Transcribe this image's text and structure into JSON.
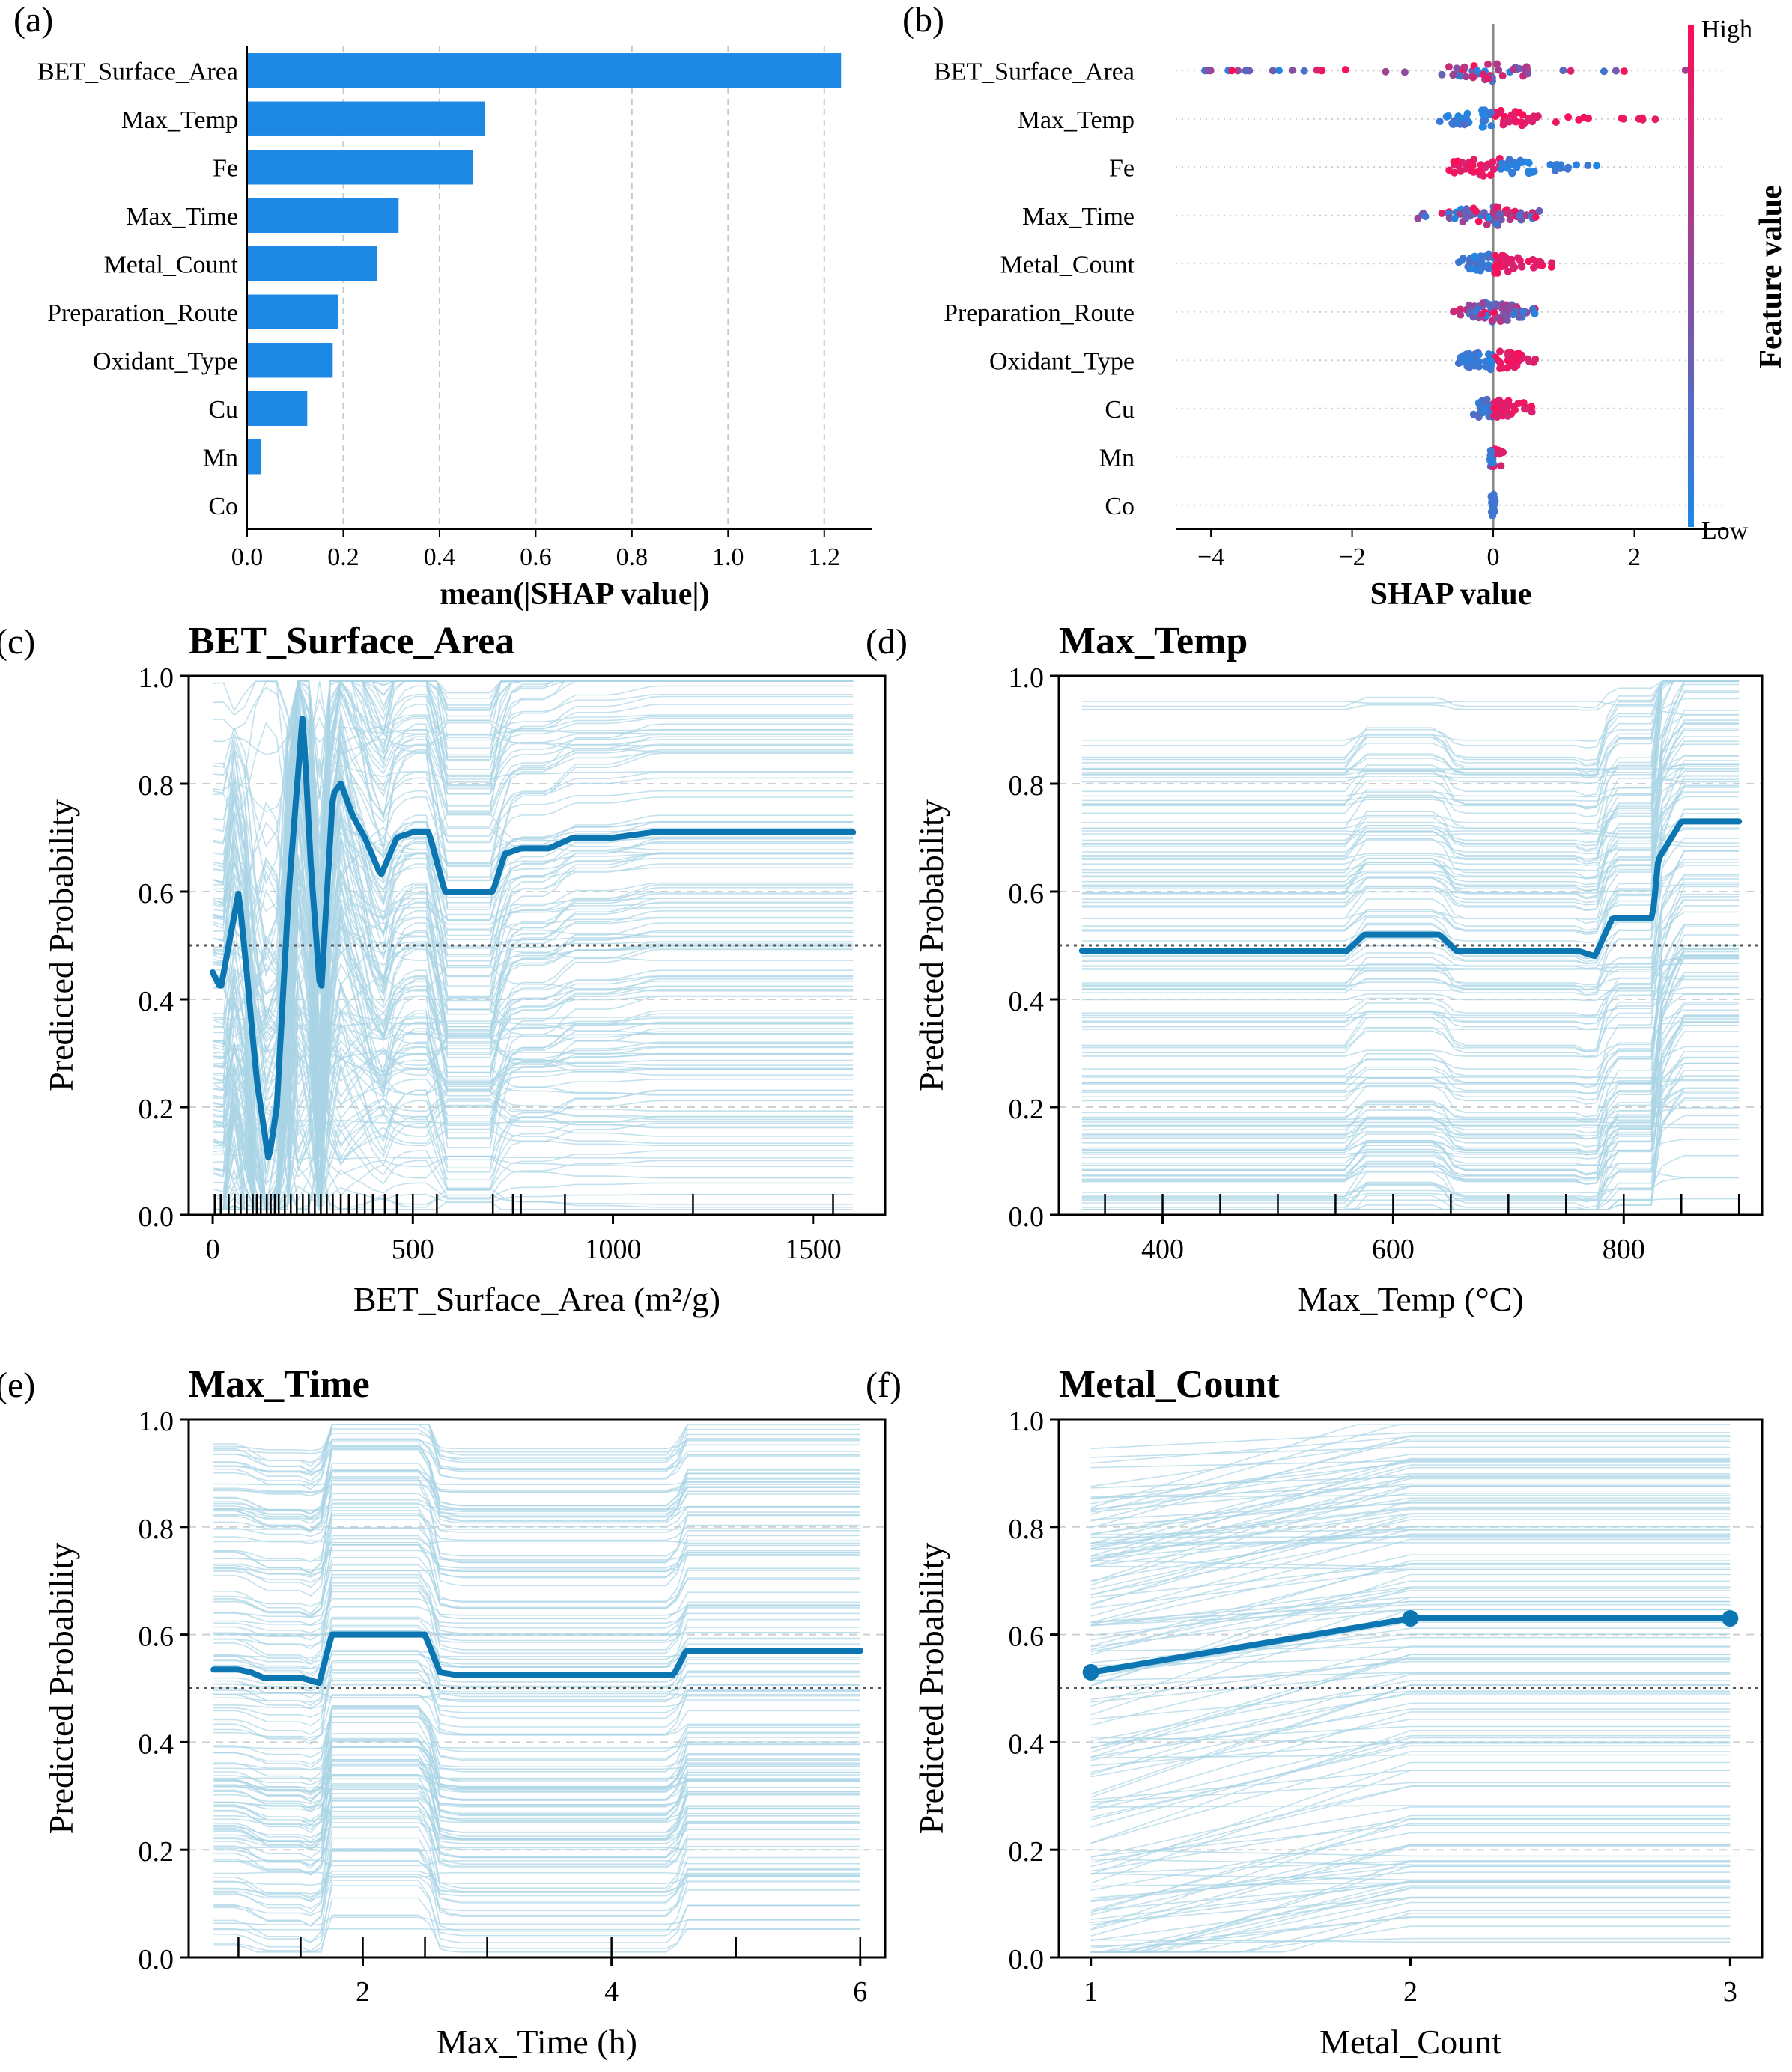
{
  "colors": {
    "bar": "#1e88e5",
    "pdp": "#0b76b2",
    "ice": "#a9d4e6",
    "low": "#1e88e5",
    "high": "#ff0d57"
  },
  "panels": {
    "a": {
      "letter": "(a)",
      "xlabel": "mean(|SHAP value|)",
      "xticks": [
        "0.0",
        "0.2",
        "0.4",
        "0.6",
        "0.8",
        "1.0",
        "1.2"
      ]
    },
    "b": {
      "letter": "(b)",
      "xlabel": "SHAP value",
      "xticks": [
        "−4",
        "−2",
        "0",
        "2"
      ],
      "colorbar": {
        "high": "High",
        "low": "Low",
        "label": "Feature value"
      }
    },
    "c": {
      "letter": "(c)",
      "title": "BET_Surface_Area",
      "xlabel": "BET_Surface_Area (m²/g)",
      "ylabel": "Predicted Probability",
      "xticks": [
        "0",
        "500",
        "1000",
        "1500"
      ],
      "yticks": [
        "0.0",
        "0.2",
        "0.4",
        "0.6",
        "0.8",
        "1.0"
      ]
    },
    "d": {
      "letter": "(d)",
      "title": "Max_Temp",
      "xlabel": "Max_Temp (°C)",
      "ylabel": "Predicted Probability",
      "xticks": [
        "400",
        "600",
        "800"
      ],
      "yticks": [
        "0.0",
        "0.2",
        "0.4",
        "0.6",
        "0.8",
        "1.0"
      ]
    },
    "e": {
      "letter": "(e)",
      "title": "Max_Time",
      "xlabel": "Max_Time (h)",
      "ylabel": "Predicted Probability",
      "xticks": [
        "2",
        "4",
        "6"
      ],
      "yticks": [
        "0.0",
        "0.2",
        "0.4",
        "0.6",
        "0.8",
        "1.0"
      ]
    },
    "f": {
      "letter": "(f)",
      "title": "Metal_Count",
      "xlabel": "Metal_Count",
      "ylabel": "Predicted Probability",
      "xticks": [
        "1",
        "2",
        "3"
      ],
      "yticks": [
        "0.0",
        "0.2",
        "0.4",
        "0.6",
        "0.8",
        "1.0"
      ]
    }
  },
  "chart_data": [
    {
      "panel": "a",
      "type": "bar",
      "orientation": "horizontal",
      "categories": [
        "BET_Surface_Area",
        "Max_Temp",
        "Fe",
        "Max_Time",
        "Metal_Count",
        "Preparation_Route",
        "Oxidant_Type",
        "Cu",
        "Mn",
        "Co"
      ],
      "values": [
        1.235,
        0.495,
        0.47,
        0.315,
        0.27,
        0.19,
        0.178,
        0.125,
        0.028,
        0.0
      ],
      "xlabel": "mean(|SHAP value|)",
      "xlim": [
        0,
        1.3
      ],
      "grid": "x"
    },
    {
      "panel": "b",
      "type": "scatter",
      "subtype": "beeswarm",
      "categories": [
        "BET_Surface_Area",
        "Max_Temp",
        "Fe",
        "Max_Time",
        "Metal_Count",
        "Preparation_Route",
        "Oxidant_Type",
        "Cu",
        "Mn",
        "Co"
      ],
      "ranges": [
        [
          -4.1,
          2.9
        ],
        [
          -1.0,
          2.3
        ],
        [
          -0.7,
          1.5
        ],
        [
          -1.2,
          0.8
        ],
        [
          -0.5,
          0.9
        ],
        [
          -0.6,
          0.6
        ],
        [
          -0.5,
          0.6
        ],
        [
          -0.3,
          0.6
        ],
        [
          -0.05,
          0.15
        ],
        [
          -0.03,
          0.03
        ]
      ],
      "high_side": [
        "mixed",
        "right",
        "left",
        "mixed",
        "right",
        "mixed",
        "right",
        "right",
        "right",
        "none"
      ],
      "xlabel": "SHAP value",
      "xlim": [
        -4.5,
        3.3
      ]
    },
    {
      "panel": "c",
      "type": "line",
      "title": "BET_Surface_Area",
      "xlabel": "BET_Surface_Area (m²/g)",
      "ylabel": "Predicted Probability",
      "xlim": [
        -60,
        1680
      ],
      "ylim": [
        0,
        1
      ],
      "reference_line": 0.5,
      "x": [
        0,
        20,
        40,
        65,
        85,
        110,
        140,
        160,
        190,
        225,
        245,
        270,
        300,
        320,
        350,
        380,
        420,
        460,
        500,
        540,
        580,
        620,
        660,
        700,
        730,
        770,
        840,
        900,
        1000,
        1100,
        1200,
        1400,
        1600
      ],
      "y": [
        0.45,
        0.42,
        0.5,
        0.6,
        0.45,
        0.25,
        0.1,
        0.2,
        0.6,
        0.93,
        0.65,
        0.4,
        0.78,
        0.8,
        0.74,
        0.7,
        0.63,
        0.7,
        0.71,
        0.71,
        0.6,
        0.6,
        0.6,
        0.6,
        0.67,
        0.68,
        0.68,
        0.7,
        0.7,
        0.71,
        0.71,
        0.71,
        0.71
      ],
      "rug": [
        5,
        20,
        40,
        55,
        70,
        85,
        100,
        110,
        120,
        135,
        145,
        155,
        165,
        180,
        195,
        210,
        225,
        240,
        255,
        270,
        285,
        300,
        320,
        340,
        360,
        380,
        400,
        430,
        460,
        500,
        560,
        700,
        750,
        770,
        880,
        1200,
        1550
      ]
    },
    {
      "panel": "d",
      "type": "line",
      "title": "Max_Temp",
      "xlabel": "Max_Temp (°C)",
      "ylabel": "Predicted Probability",
      "xlim": [
        310,
        920
      ],
      "ylim": [
        0,
        1
      ],
      "reference_line": 0.5,
      "x": [
        330,
        400,
        500,
        560,
        575,
        600,
        640,
        655,
        700,
        760,
        775,
        790,
        810,
        825,
        830,
        850,
        870,
        900
      ],
      "y": [
        0.49,
        0.49,
        0.49,
        0.49,
        0.52,
        0.52,
        0.52,
        0.49,
        0.49,
        0.49,
        0.48,
        0.55,
        0.55,
        0.55,
        0.66,
        0.73,
        0.73,
        0.73
      ],
      "rug": [
        350,
        400,
        450,
        500,
        550,
        600,
        650,
        700,
        750,
        800,
        850,
        900
      ]
    },
    {
      "panel": "e",
      "type": "line",
      "title": "Max_Time",
      "xlabel": "Max_Time (h)",
      "ylabel": "Predicted Probability",
      "xlim": [
        0.6,
        6.2
      ],
      "ylim": [
        0,
        1
      ],
      "reference_line": 0.5,
      "x": [
        0.8,
        1.0,
        1.1,
        1.2,
        1.5,
        1.65,
        1.75,
        2.0,
        2.5,
        2.62,
        2.75,
        3.0,
        4.0,
        4.5,
        4.6,
        5.0,
        6.0
      ],
      "y": [
        0.535,
        0.535,
        0.53,
        0.52,
        0.52,
        0.51,
        0.6,
        0.6,
        0.6,
        0.53,
        0.525,
        0.525,
        0.525,
        0.525,
        0.57,
        0.57,
        0.57
      ],
      "rug": [
        1.0,
        1.5,
        2.0,
        2.5,
        3.0,
        4.0,
        5.0,
        6.0
      ]
    },
    {
      "panel": "f",
      "type": "line",
      "title": "Metal_Count",
      "xlabel": "Metal_Count",
      "ylabel": "Predicted Probability",
      "xlim": [
        0.9,
        3.1
      ],
      "ylim": [
        0,
        1
      ],
      "reference_line": 0.5,
      "x": [
        1,
        2,
        3
      ],
      "y": [
        0.53,
        0.63,
        0.63
      ],
      "markers": true
    }
  ]
}
